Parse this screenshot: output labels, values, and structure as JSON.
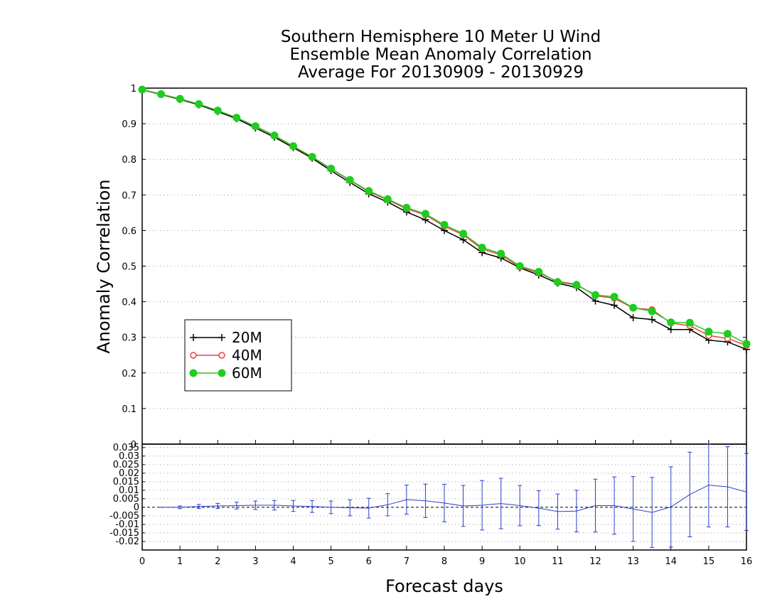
{
  "chart_data": {
    "type": "line",
    "title": "Southern Hemisphere 10 Meter U Wind",
    "subtitle": "Ensemble Mean Anomaly Correlation",
    "subtitle2": "Average For 20130909 - 20130929",
    "xlabel": "Forecast days",
    "ylabel": "Anomaly Correlation",
    "xlim": [
      0,
      16
    ],
    "ylim": [
      0,
      1
    ],
    "x_ticks": [
      "0",
      "1",
      "2",
      "3",
      "4",
      "5",
      "6",
      "7",
      "8",
      "9",
      "10",
      "11",
      "12",
      "13",
      "14",
      "15",
      "16"
    ],
    "y_ticks": [
      "0",
      "0.1",
      "0.2",
      "0.3",
      "0.4",
      "0.5",
      "0.6",
      "0.7",
      "0.8",
      "0.9",
      "1"
    ],
    "x": [
      0,
      0.5,
      1,
      1.5,
      2,
      2.5,
      3,
      3.5,
      4,
      4.5,
      5,
      5.5,
      6,
      6.5,
      7,
      7.5,
      8,
      8.5,
      9,
      9.5,
      10,
      10.5,
      11,
      11.5,
      12,
      12.5,
      13,
      13.5,
      14,
      14.5,
      15,
      15.5,
      16
    ],
    "series": [
      {
        "name": "20M",
        "color": "#000000",
        "marker": "plus",
        "values": [
          0.995,
          0.982,
          0.968,
          0.953,
          0.934,
          0.914,
          0.888,
          0.862,
          0.833,
          0.803,
          0.768,
          0.735,
          0.703,
          0.68,
          0.652,
          0.63,
          0.6,
          0.574,
          0.538,
          0.523,
          0.495,
          0.475,
          0.452,
          0.44,
          0.402,
          0.39,
          0.355,
          0.35,
          0.322,
          0.322,
          0.292,
          0.287,
          0.266
        ]
      },
      {
        "name": "40M",
        "color": "#e8423b",
        "marker": "open-circle",
        "values": [
          0.995,
          0.983,
          0.969,
          0.955,
          0.937,
          0.917,
          0.892,
          0.866,
          0.836,
          0.806,
          0.773,
          0.741,
          0.709,
          0.686,
          0.661,
          0.644,
          0.612,
          0.588,
          0.548,
          0.532,
          0.497,
          0.481,
          0.457,
          0.449,
          0.417,
          0.41,
          0.382,
          0.378,
          0.34,
          0.333,
          0.305,
          0.297,
          0.277
        ]
      },
      {
        "name": "60M",
        "color": "#1fcc1f",
        "marker": "filled-circle",
        "values": [
          0.996,
          0.983,
          0.97,
          0.955,
          0.937,
          0.917,
          0.893,
          0.867,
          0.837,
          0.807,
          0.774,
          0.742,
          0.711,
          0.688,
          0.664,
          0.647,
          0.616,
          0.591,
          0.552,
          0.535,
          0.5,
          0.484,
          0.455,
          0.447,
          0.419,
          0.414,
          0.383,
          0.373,
          0.342,
          0.341,
          0.316,
          0.31,
          0.282
        ]
      }
    ],
    "legend_position": "left-middle",
    "grid": true,
    "diff_panel": {
      "type": "line-errorbar",
      "color": "#2a3fcf",
      "ylim": [
        -0.025,
        0.037
      ],
      "y_ticks": [
        "0.035",
        "0.03",
        "0.025",
        "0.02",
        "0.015",
        "0.01",
        "0.005",
        "0",
        "-0.005",
        "-0.01",
        "-0.015",
        "-0.02"
      ],
      "x": [
        0.5,
        1,
        1.5,
        2,
        2.5,
        3,
        3.5,
        4,
        4.5,
        5,
        5.5,
        6,
        6.5,
        7,
        7.5,
        8,
        8.5,
        9,
        9.5,
        10,
        10.5,
        11,
        11.5,
        12,
        12.5,
        13,
        13.5,
        14,
        14.5,
        15,
        15.5,
        16
      ],
      "mean": [
        0,
        0,
        0.0005,
        0.0008,
        0.001,
        0.0012,
        0.0012,
        0.0008,
        0.0005,
        0,
        -0.0003,
        -0.0005,
        0.0015,
        0.0045,
        0.0038,
        0.0025,
        0.0008,
        0.0012,
        0.0022,
        0.001,
        -0.0005,
        -0.0025,
        -0.0022,
        0.001,
        0.001,
        -0.001,
        -0.003,
        0.0002,
        0.0075,
        0.013,
        0.012,
        0.009
      ],
      "err": [
        0,
        0.0008,
        0.0012,
        0.0015,
        0.002,
        0.0025,
        0.0028,
        0.0032,
        0.0035,
        0.0037,
        0.0047,
        0.0058,
        0.0065,
        0.0085,
        0.0098,
        0.011,
        0.012,
        0.0145,
        0.0148,
        0.0118,
        0.0102,
        0.0103,
        0.0122,
        0.0155,
        0.0168,
        0.019,
        0.0205,
        0.0235,
        0.0248,
        0.0245,
        0.0235,
        0.0225
      ]
    }
  }
}
